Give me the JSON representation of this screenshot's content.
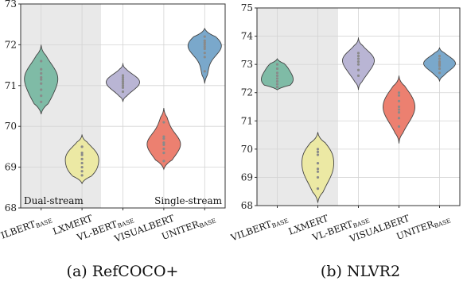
{
  "chart_data": [
    {
      "type": "violin",
      "caption": "(a) RefCOCO+",
      "ylim": [
        68,
        73
      ],
      "yticks": [
        68,
        69,
        70,
        71,
        72,
        73
      ],
      "grid": true,
      "annotations": {
        "left": "Dual-stream",
        "right": "Single-stream"
      },
      "categories": [
        {
          "name": "VILBERT",
          "sub": "BASE",
          "color": "#7fbba6",
          "points": [
            70.6,
            70.75,
            70.9,
            71.05,
            71.15,
            71.2,
            71.3,
            71.4,
            71.6
          ],
          "range": [
            70.3,
            72.0
          ]
        },
        {
          "name": "LXMERT",
          "sub": "",
          "color": "#ece9a4",
          "points": [
            68.8,
            68.9,
            69.0,
            69.1,
            69.2,
            69.3,
            69.35,
            69.5
          ],
          "range": [
            68.6,
            69.8
          ]
        },
        {
          "name": "VL-BERT",
          "sub": "BASE",
          "color": "#b9b5d4",
          "points": [
            70.85,
            70.95,
            71.0,
            71.05,
            71.1,
            71.15,
            71.2,
            71.25
          ],
          "range": [
            70.6,
            71.55
          ]
        },
        {
          "name": "VISUALBERT",
          "sub": "",
          "color": "#ec8070",
          "points": [
            69.15,
            69.35,
            69.45,
            69.55,
            69.6,
            69.7,
            69.75,
            70.1
          ],
          "range": [
            68.95,
            70.45
          ]
        },
        {
          "name": "UNITER",
          "sub": "BASE",
          "color": "#7aa8cb",
          "points": [
            71.35,
            71.7,
            71.8,
            71.9,
            71.95,
            72.0,
            72.05,
            72.1,
            72.2
          ],
          "range": [
            71.05,
            72.4
          ]
        }
      ]
    },
    {
      "type": "violin",
      "caption": "(b) NLVR2",
      "ylim": [
        68,
        75
      ],
      "yticks": [
        68,
        69,
        70,
        71,
        72,
        73,
        74,
        75
      ],
      "grid": true,
      "categories": [
        {
          "name": "VILBERT",
          "sub": "BASE",
          "color": "#7fbba6",
          "points": [
            72.2,
            72.3,
            72.4,
            72.5,
            72.6,
            72.7,
            72.85,
            73.0
          ],
          "range": [
            72.1,
            73.2
          ]
        },
        {
          "name": "LXMERT",
          "sub": "",
          "color": "#ece9a4",
          "points": [
            68.6,
            69.0,
            69.2,
            69.3,
            69.5,
            69.8,
            69.9,
            70.0
          ],
          "range": [
            68.1,
            70.6
          ]
        },
        {
          "name": "VL-BERT",
          "sub": "BASE",
          "color": "#b9b5d4",
          "points": [
            72.6,
            72.8,
            73.0,
            73.1,
            73.2,
            73.3,
            73.4
          ],
          "range": [
            72.1,
            73.95
          ]
        },
        {
          "name": "VISUALBERT",
          "sub": "",
          "color": "#ec8070",
          "points": [
            70.8,
            71.1,
            71.3,
            71.4,
            71.5,
            71.7,
            71.9,
            72.0
          ],
          "range": [
            70.2,
            72.6
          ]
        },
        {
          "name": "UNITER",
          "sub": "BASE",
          "color": "#7aa8cb",
          "points": [
            72.7,
            72.85,
            72.95,
            73.0,
            73.05,
            73.1,
            73.2,
            73.3
          ],
          "range": [
            72.4,
            73.6
          ]
        }
      ]
    }
  ]
}
